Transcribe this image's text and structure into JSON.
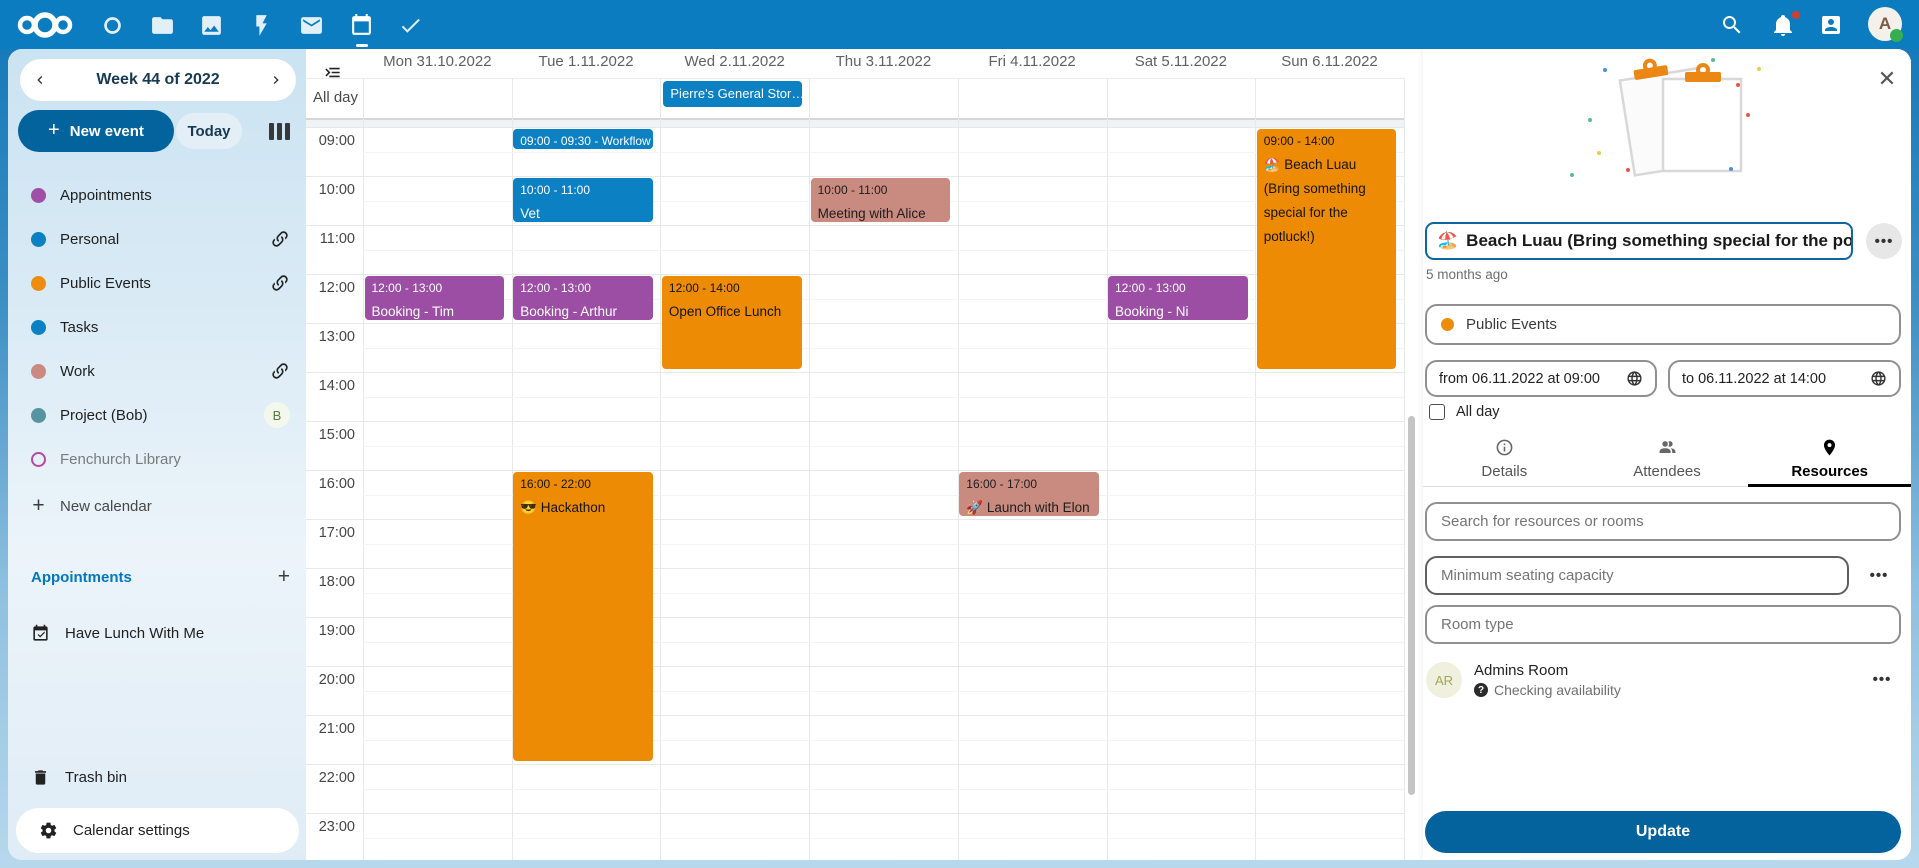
{
  "colors": {
    "primary": "#0b7cc0",
    "button_blue": "#03639c",
    "event_blue": "#0b80c3",
    "event_purple": "#9b4ea3",
    "event_orange": "#ee8b05",
    "event_salmon": "#c98b80"
  },
  "topbar": {
    "app_icons": [
      "dashboard",
      "files",
      "photos",
      "activity",
      "mail",
      "calendar",
      "tasks"
    ],
    "active_app": "calendar",
    "right_icons": [
      "search",
      "notifications",
      "contacts",
      "avatar"
    ],
    "avatar_letter": "A",
    "notification_badge": true
  },
  "sidebar": {
    "week_title": "Week 44 of 2022",
    "new_event_label": "New event",
    "today_label": "Today",
    "calendars": [
      {
        "label": "Appointments",
        "color": "#9f4fa5"
      },
      {
        "label": "Personal",
        "color": "#0b80c3",
        "trailing": "link"
      },
      {
        "label": "Public Events",
        "color": "#ee8c0e",
        "trailing": "link"
      },
      {
        "label": "Tasks",
        "color": "#0b80c3"
      },
      {
        "label": "Work",
        "color": "#ca8a7f",
        "trailing": "link"
      },
      {
        "label": "Project (Bob)",
        "color": "#56959f",
        "trailing": "avatar",
        "avatar_letter": "B"
      },
      {
        "label": "Fenchurch Library",
        "color": "#b5499e",
        "outline": true,
        "muted": true
      }
    ],
    "new_calendar_label": "New calendar",
    "appointments_heading": "Appointments",
    "appointment_items": [
      {
        "label": "Have Lunch With Me"
      }
    ],
    "trash_label": "Trash bin",
    "settings_label": "Calendar settings"
  },
  "calendar": {
    "allday_label": "All day",
    "days": [
      "Mon 31.10.2022",
      "Tue 1.11.2022",
      "Wed 2.11.2022",
      "Thu 3.11.2022",
      "Fri 4.11.2022",
      "Sat 5.11.2022",
      "Sun 6.11.2022"
    ],
    "hours": [
      "09:00",
      "10:00",
      "11:00",
      "12:00",
      "13:00",
      "14:00",
      "15:00",
      "16:00",
      "17:00",
      "18:00",
      "19:00",
      "20:00",
      "21:00",
      "22:00",
      "23:00"
    ],
    "allday_events": [
      {
        "day": 2,
        "title": "Pierre's General Stor…",
        "color": "blue"
      }
    ],
    "events": [
      {
        "day": 1,
        "start": "09:00",
        "end": "09:30",
        "title": "Workflow",
        "color": "blue",
        "compact": true
      },
      {
        "day": 1,
        "start": "10:00",
        "end": "11:00",
        "title": "Vet",
        "color": "blue"
      },
      {
        "day": 3,
        "start": "10:00",
        "end": "11:00",
        "title": "Meeting with Alice",
        "color": "salmon"
      },
      {
        "day": 0,
        "start": "12:00",
        "end": "13:00",
        "title": "Booking - Tim (Wizard)",
        "color": "purple"
      },
      {
        "day": 1,
        "start": "12:00",
        "end": "13:00",
        "title": "Booking - Arthur Dent",
        "color": "purple"
      },
      {
        "day": 2,
        "start": "12:00",
        "end": "14:00",
        "title": "Open Office Lunch",
        "color": "orange"
      },
      {
        "day": 5,
        "start": "12:00",
        "end": "13:00",
        "title": "Booking - Ni (Knights",
        "color": "purple"
      },
      {
        "day": 6,
        "start": "09:00",
        "end": "14:00",
        "title": "🏖️ Beach Luau (Bring something special for the potluck!)",
        "color": "orange"
      },
      {
        "day": 1,
        "start": "16:00",
        "end": "22:00",
        "title": "😎 Hackathon",
        "color": "orange"
      },
      {
        "day": 4,
        "start": "16:00",
        "end": "17:00",
        "title": "🚀 Launch with Elon",
        "color": "salmon"
      }
    ]
  },
  "panel": {
    "title_emoji": "🏖️",
    "title": "Beach Luau (Bring something special for the potluck!)",
    "modified": "5 months ago",
    "calendar_name": "Public Events",
    "calendar_dot_color": "#ee8c0e",
    "from_label": "from 06.11.2022 at 09:00",
    "to_label": "to 06.11.2022 at 14:00",
    "allday_label": "All day",
    "tabs": [
      {
        "label": "Details",
        "icon": "info"
      },
      {
        "label": "Attendees",
        "icon": "people"
      },
      {
        "label": "Resources",
        "icon": "pin",
        "active": true
      }
    ],
    "search_placeholder": "Search for resources or rooms",
    "seating_placeholder": "Minimum seating capacity",
    "roomtype_placeholder": "Room type",
    "room": {
      "initials": "AR",
      "name": "Admins Room",
      "status": "Checking availability"
    },
    "update_label": "Update",
    "more_actions": "•••"
  }
}
